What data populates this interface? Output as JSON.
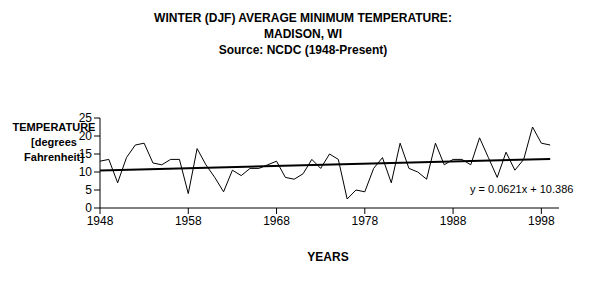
{
  "chart_data": {
    "type": "line",
    "title": "WINTER (DJF) AVERAGE MINIMUM TEMPERATURE: MADISON, WI",
    "subtitle": "Source: NCDC (1948-Present)",
    "y_label": "TEMPERATURE [degrees Fahrenheit]",
    "x_label": "YEARS",
    "annotation": "y = 0.0621x + 10.386",
    "x": [
      1948,
      1949,
      1950,
      1951,
      1952,
      1953,
      1954,
      1955,
      1956,
      1957,
      1958,
      1959,
      1960,
      1961,
      1962,
      1963,
      1964,
      1965,
      1966,
      1967,
      1968,
      1969,
      1970,
      1971,
      1972,
      1973,
      1974,
      1975,
      1976,
      1977,
      1978,
      1979,
      1980,
      1981,
      1982,
      1983,
      1984,
      1985,
      1986,
      1987,
      1988,
      1989,
      1990,
      1991,
      1992,
      1993,
      1994,
      1995,
      1996,
      1997,
      1998,
      1999
    ],
    "values": [
      13,
      13.5,
      7,
      14,
      17.5,
      18,
      12.5,
      12,
      13.5,
      13.5,
      4,
      16.5,
      12,
      8.5,
      4.5,
      10.5,
      9,
      11,
      11,
      12,
      13,
      8.5,
      8,
      9.5,
      13.5,
      11,
      15,
      13.5,
      2.5,
      5,
      4.5,
      11,
      14,
      7,
      18,
      11,
      10,
      8,
      18,
      12,
      13.5,
      13.5,
      12,
      19.5,
      14,
      8.5,
      15.5,
      10.5,
      13.5,
      22.5,
      18,
      17.5
    ],
    "color": "#000000",
    "trend": {
      "x": [
        1948,
        1999
      ],
      "values": [
        10.45,
        13.61
      ],
      "color": "#000000"
    },
    "xlim": [
      1948,
      2000
    ],
    "xticks": [
      1948,
      1958,
      1968,
      1978,
      1988,
      1998
    ],
    "ylim": [
      0,
      25
    ],
    "yticks": [
      0,
      5,
      10,
      15,
      20,
      25
    ],
    "grid": false
  }
}
